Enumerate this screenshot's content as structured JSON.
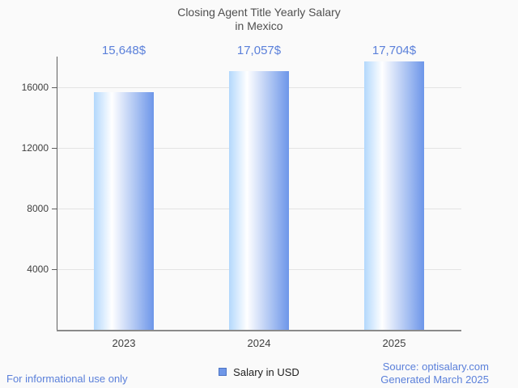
{
  "title": {
    "lines": [
      "Closing Agent Title Yearly Salary",
      "in Mexico"
    ]
  },
  "chart_data": {
    "type": "bar",
    "title": "Closing Agent Title Yearly Salary in Mexico",
    "categories": [
      "2023",
      "2024",
      "2025"
    ],
    "series": [
      {
        "name": "Salary in USD",
        "values": [
          15648,
          17057,
          17704
        ]
      }
    ],
    "value_labels": [
      "15,648$",
      "17,057$",
      "17,704$"
    ],
    "xlabel": "",
    "ylabel": "",
    "ylim": [
      0,
      18000
    ],
    "y_ticks": [
      4000,
      8000,
      12000,
      16000
    ],
    "grid": true,
    "legend_position": "bottom",
    "bar_gradient": [
      "#b3d8fc",
      "#ffffff",
      "#6d96e9"
    ]
  },
  "footer": {
    "left_note": "For informational use only",
    "source": "Source: optisalary.com",
    "generated": "Generated March 2025"
  },
  "colors": {
    "background": "#fafafa",
    "title_text": "#4f4f4f",
    "axis_text": "#3f3f3f",
    "blue_text": "#5b80da",
    "gridline": "#e3e3e3",
    "axis_line": "#8a8a8a",
    "yaxis_line": "#5f5f5f",
    "legend_marker_fill": "#6f97e8",
    "legend_marker_border": "#4d74c4"
  }
}
